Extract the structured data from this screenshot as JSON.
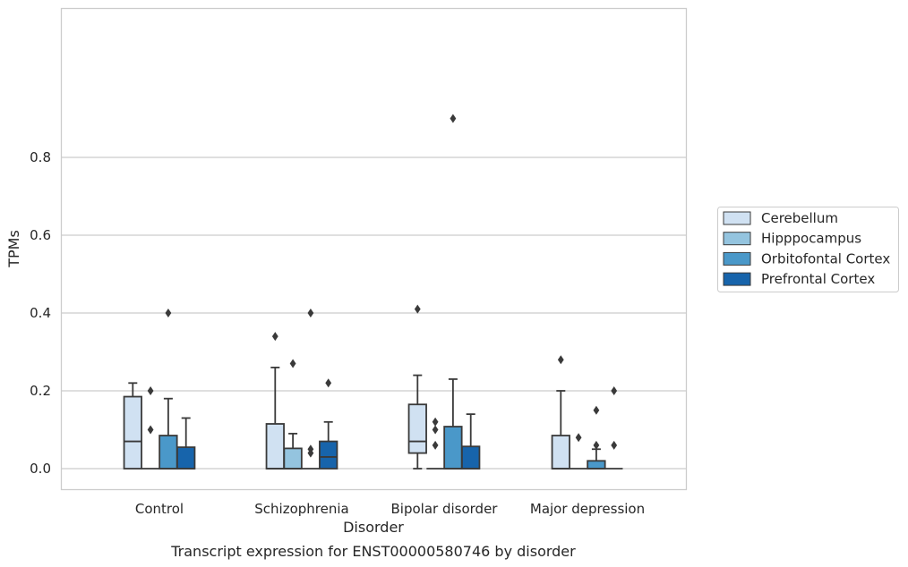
{
  "caption": "Transcript expression for ENST00000580746 by disorder",
  "chart_data": {
    "type": "box",
    "title": "",
    "xlabel": "Disorder",
    "ylabel": "TPMs",
    "ylim": [
      -0.045,
      0.945
    ],
    "yticks": [
      0.0,
      0.2,
      0.4,
      0.6,
      0.8
    ],
    "ytick_labels": [
      "0.0",
      "0.2",
      "0.4",
      "0.6",
      "0.8"
    ],
    "grid": "horizontal",
    "legend_position": "right",
    "categories": [
      "Control",
      "Schizophrenia",
      "Bipolar disorder",
      "Major depression"
    ],
    "series": [
      {
        "name": "Cerebellum",
        "color": "#d0e1f2",
        "boxes": [
          {
            "whislo": 0.0,
            "q1": 0.0,
            "med": 0.07,
            "q3": 0.185,
            "whishi": 0.22,
            "fliers": []
          },
          {
            "whislo": 0.0,
            "q1": 0.0,
            "med": 0.0,
            "q3": 0.115,
            "whishi": 0.26,
            "fliers": [
              0.34
            ]
          },
          {
            "whislo": 0.0,
            "q1": 0.04,
            "med": 0.07,
            "q3": 0.165,
            "whishi": 0.24,
            "fliers": [
              0.41
            ]
          },
          {
            "whislo": 0.0,
            "q1": 0.0,
            "med": 0.0,
            "q3": 0.085,
            "whishi": 0.2,
            "fliers": [
              0.28
            ]
          }
        ]
      },
      {
        "name": "Hipppocampus",
        "color": "#94c4df",
        "boxes": [
          {
            "whislo": 0.0,
            "q1": 0.0,
            "med": 0.0,
            "q3": 0.0,
            "whishi": 0.0,
            "fliers": [
              0.1,
              0.2
            ]
          },
          {
            "whislo": 0.0,
            "q1": 0.0,
            "med": 0.0,
            "q3": 0.052,
            "whishi": 0.09,
            "fliers": [
              0.27
            ]
          },
          {
            "whislo": 0.0,
            "q1": 0.0,
            "med": 0.0,
            "q3": 0.0,
            "whishi": 0.0,
            "fliers": [
              0.06,
              0.1,
              0.12
            ]
          },
          {
            "whislo": 0.0,
            "q1": 0.0,
            "med": 0.0,
            "q3": 0.0,
            "whishi": 0.0,
            "fliers": [
              0.08
            ]
          }
        ]
      },
      {
        "name": "Orbitofontal Cortex",
        "color": "#4a98c9",
        "boxes": [
          {
            "whislo": 0.0,
            "q1": 0.0,
            "med": 0.0,
            "q3": 0.085,
            "whishi": 0.18,
            "fliers": [
              0.4
            ]
          },
          {
            "whislo": 0.0,
            "q1": 0.0,
            "med": 0.0,
            "q3": 0.0,
            "whishi": 0.0,
            "fliers": [
              0.04,
              0.05,
              0.4
            ]
          },
          {
            "whislo": 0.0,
            "q1": 0.0,
            "med": 0.0,
            "q3": 0.108,
            "whishi": 0.23,
            "fliers": [
              0.9
            ]
          },
          {
            "whislo": 0.0,
            "q1": 0.0,
            "med": 0.0,
            "q3": 0.02,
            "whishi": 0.05,
            "fliers": [
              0.06,
              0.15
            ]
          }
        ]
      },
      {
        "name": "Prefrontal Cortex",
        "color": "#1764ab",
        "boxes": [
          {
            "whislo": 0.0,
            "q1": 0.0,
            "med": 0.0,
            "q3": 0.055,
            "whishi": 0.13,
            "fliers": []
          },
          {
            "whislo": 0.0,
            "q1": 0.0,
            "med": 0.03,
            "q3": 0.07,
            "whishi": 0.12,
            "fliers": [
              0.22
            ]
          },
          {
            "whislo": 0.0,
            "q1": 0.0,
            "med": 0.0,
            "q3": 0.057,
            "whishi": 0.14,
            "fliers": []
          },
          {
            "whislo": 0.0,
            "q1": 0.0,
            "med": 0.0,
            "q3": 0.0,
            "whishi": 0.0,
            "fliers": [
              0.06,
              0.2
            ]
          }
        ]
      }
    ]
  }
}
